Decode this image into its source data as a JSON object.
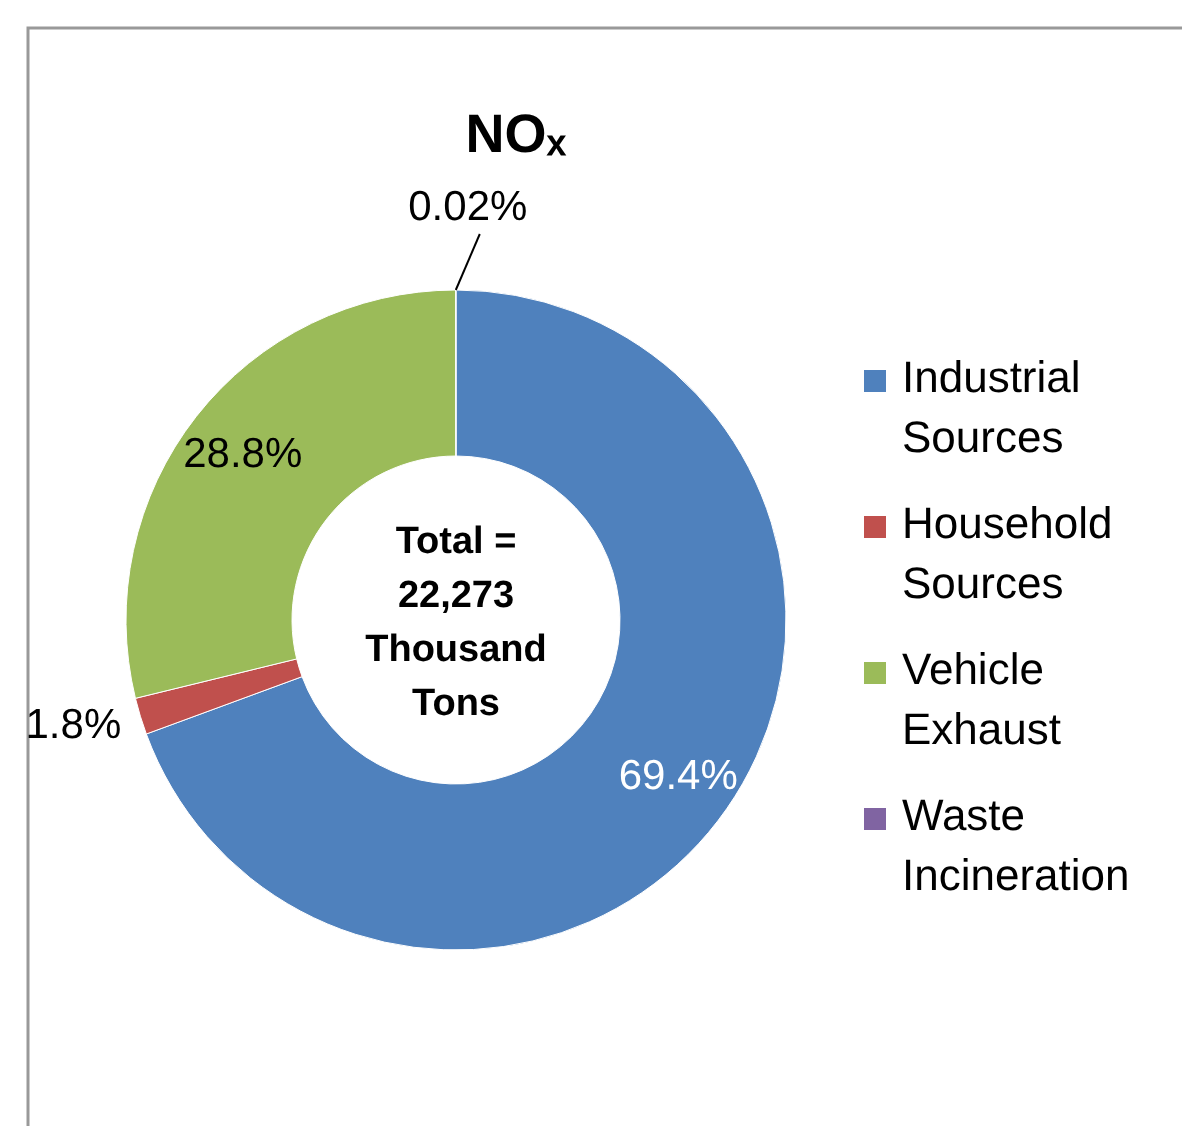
{
  "chart_data": {
    "type": "donut",
    "title": "NOₓ",
    "categories": [
      "Industrial Sources",
      "Household Sources",
      "Vehicle Exhaust",
      "Waste Incineration"
    ],
    "values": [
      69.4,
      1.8,
      28.8,
      0.02
    ],
    "colors": [
      "#4f81bd",
      "#c0504d",
      "#9bbb59",
      "#8064a2"
    ],
    "value_labels": [
      "69.4%",
      "1.8%",
      "28.8%",
      "0.02%"
    ],
    "annotations": [
      "Total = 22,273 Thousand Tons"
    ],
    "legend": "right"
  }
}
